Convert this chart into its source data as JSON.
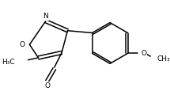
{
  "bg_color": "#ffffff",
  "line_color": "#000000",
  "line_width": 1.1,
  "font_size": 6.5,
  "figsize": [
    2.15,
    1.2
  ],
  "dpi": 100,
  "xlim": [
    0,
    215
  ],
  "ylim": [
    0,
    120
  ]
}
